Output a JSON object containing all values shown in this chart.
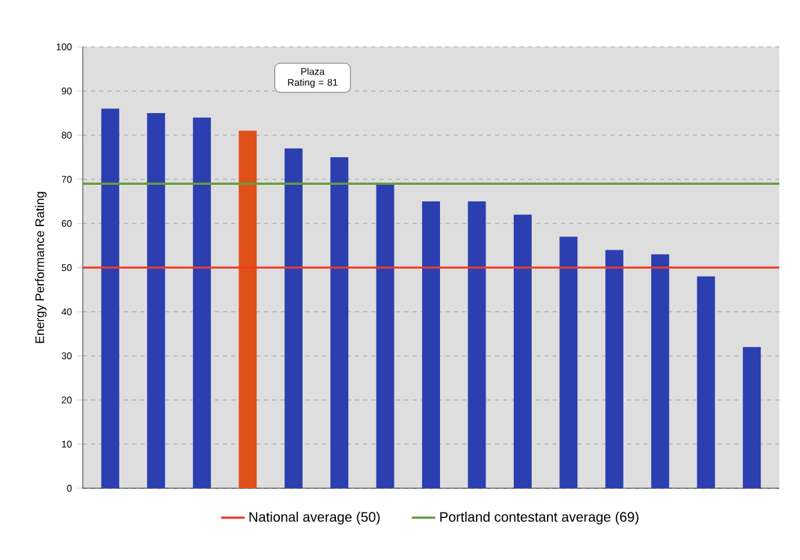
{
  "chart_data": {
    "type": "bar",
    "ylabel": "Energy Performance Rating",
    "categories": [
      null,
      null,
      null,
      null,
      null,
      null,
      null,
      null,
      null,
      null,
      null,
      null,
      null,
      null,
      null
    ],
    "values": [
      86,
      85,
      84,
      81,
      77,
      75,
      69,
      65,
      65,
      62,
      57,
      54,
      53,
      48,
      32
    ],
    "colors": [
      "#2b3fb0",
      "#2b3fb0",
      "#2b3fb0",
      "#e0501a",
      "#2b3fb0",
      "#2b3fb0",
      "#2b3fb0",
      "#2b3fb0",
      "#2b3fb0",
      "#2b3fb0",
      "#2b3fb0",
      "#2b3fb0",
      "#2b3fb0",
      "#2b3fb0",
      "#2b3fb0"
    ],
    "ylim": [
      0,
      100
    ],
    "yticks": [
      0,
      10,
      20,
      30,
      40,
      50,
      60,
      70,
      80,
      90,
      100
    ],
    "grid": "y",
    "ref_lines": [
      {
        "axis": "y",
        "value": 50,
        "label": "National average (50)",
        "color": "#f03a2a"
      },
      {
        "axis": "y",
        "value": 69,
        "label": "Portland contestant average (69)",
        "color": "#6a9a3c"
      }
    ],
    "annotations": [
      "Plaza Rating = 81"
    ],
    "legend": "bottom"
  }
}
